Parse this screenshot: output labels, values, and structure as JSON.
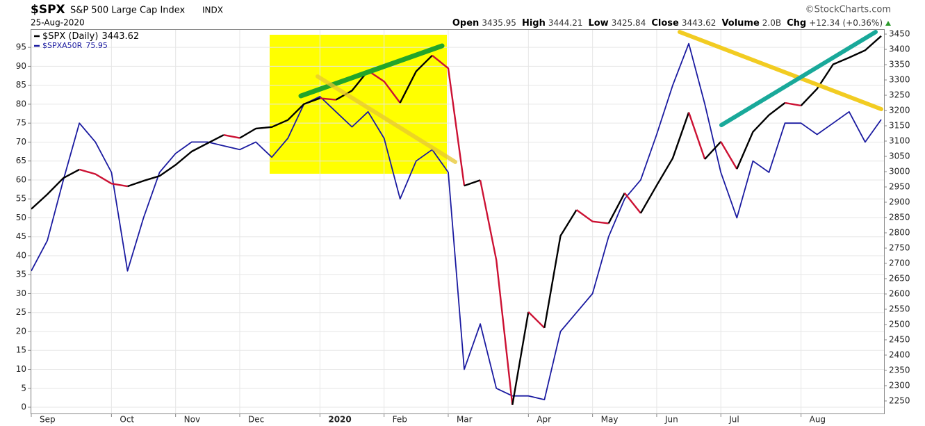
{
  "header": {
    "symbol": "$SPX",
    "name": "S&P 500 Large Cap Index",
    "exchange": "INDX",
    "date": "25-Aug-2020",
    "source": "©StockCharts.com",
    "quote": [
      {
        "label": "Open",
        "value": 3435.95
      },
      {
        "label": "High",
        "value": 3444.21
      },
      {
        "label": "Low",
        "value": 3425.84
      },
      {
        "label": "Close",
        "value": 3443.62
      },
      {
        "label": "Volume",
        "value": {
          "value": 2000000000,
          "label": "2.0B"
        }
      },
      {
        "label": "Chg",
        "value": "+12.34 (+0.36%)"
      }
    ]
  },
  "chart_data": {
    "type": "line",
    "categories": [
      "Sep",
      null,
      null,
      null,
      null,
      "Oct",
      null,
      null,
      null,
      "Nov",
      null,
      null,
      null,
      "Dec",
      null,
      null,
      null,
      null,
      "2020",
      null,
      null,
      null,
      "Feb",
      null,
      null,
      null,
      "Mar",
      null,
      null,
      null,
      null,
      "Apr",
      null,
      null,
      null,
      "May",
      null,
      null,
      null,
      "Jun",
      null,
      null,
      null,
      "Jul",
      null,
      null,
      null,
      null,
      "Aug",
      null,
      null,
      null,
      null,
      null
    ],
    "series": [
      {
        "name": "$SPX (Daily)",
        "axis": "y2",
        "color": "#000000",
        "down_color": "#cc1133",
        "values": [
          2878,
          2926,
          2979,
          3007,
          2992,
          2961,
          2952,
          2970,
          2986,
          3022,
          3066,
          3093,
          3120,
          3110,
          3141,
          3146,
          3169,
          3221,
          3240,
          3235,
          3265,
          3330,
          3295,
          3225,
          3328,
          3380,
          3338,
          2954,
          2972,
          2711,
          2237,
          2541,
          2489,
          2790,
          2875,
          2837,
          2831,
          2930,
          2864,
          2955,
          3044,
          3194,
          3041,
          3098,
          3009,
          3130,
          3185,
          3225,
          3216,
          3271,
          3351,
          3373,
          3397,
          3443.62
        ]
      },
      {
        "name": "$SPXA50R",
        "axis": "y",
        "color": "#1a1aa0",
        "values": [
          36,
          44,
          60,
          75,
          70,
          62,
          36,
          50,
          62,
          67,
          70,
          70,
          69,
          68,
          70,
          66,
          71,
          80,
          82,
          78,
          74,
          78,
          71,
          55,
          65,
          68,
          62,
          10,
          22,
          5,
          3,
          3,
          2,
          20,
          25,
          30,
          45,
          55,
          60,
          72,
          85,
          96,
          80,
          62,
          50,
          65,
          62,
          75,
          75,
          72,
          75,
          78,
          70,
          75.95
        ]
      }
    ],
    "ylim": [
      -1.65,
      99.8
    ],
    "yticks": [
      0,
      5,
      10,
      15,
      20,
      25,
      30,
      35,
      40,
      45,
      50,
      55,
      60,
      65,
      70,
      75,
      80,
      85,
      90,
      95
    ],
    "y2lim": [
      2209,
      3466
    ],
    "y2ticks": [
      2250,
      2300,
      2350,
      2400,
      2450,
      2500,
      2550,
      2600,
      2650,
      2700,
      2750,
      2800,
      2850,
      2900,
      2950,
      3000,
      3050,
      3100,
      3150,
      3200,
      3250,
      3300,
      3350,
      3400,
      3450
    ],
    "grid": true
  }
}
